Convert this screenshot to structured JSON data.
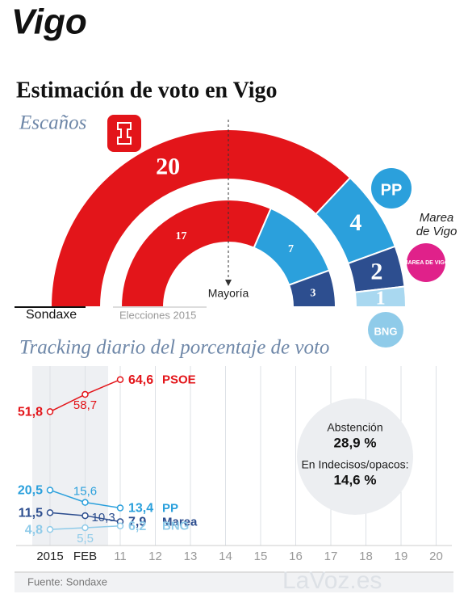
{
  "title": "Vigo",
  "heading": "Estimación de voto en Vigo",
  "source": "Fuente: Sondaxe",
  "watermark": "LaVoz.es",
  "chart_data": [
    {
      "type": "parliament",
      "title": "Escaños",
      "annotation": "Mayoría",
      "colors": [
        "#e3151a",
        "#2ba0dc",
        "#2d4e8f",
        "#a9d8f0"
      ],
      "series": [
        {
          "name": "Sondaxe",
          "values": [
            20,
            4,
            2,
            1
          ]
        },
        {
          "name": "Elecciones 2015",
          "values": [
            17,
            7,
            3
          ]
        }
      ],
      "logos": {
        "pp": "PP",
        "marea": "MAREA DE VIGO",
        "bng": "BNG",
        "marea_label": [
          "Marea",
          "de Vigo"
        ]
      }
    },
    {
      "type": "line",
      "title": "Tracking diario del porcentaje de voto",
      "categories": [
        "2015",
        "FEB",
        "11",
        "12",
        "13",
        "14",
        "15",
        "16",
        "17",
        "18",
        "19",
        "20"
      ],
      "ylim": [
        0,
        70
      ],
      "series": [
        {
          "name": "PSOE",
          "color": "#e3151a",
          "values": [
            51.8,
            58.7,
            64.6,
            null,
            null,
            null,
            null,
            null,
            null,
            null,
            null,
            null
          ],
          "value_labels": [
            "51,8",
            "58,7",
            "64,6",
            null,
            null,
            null,
            null,
            null,
            null,
            null,
            null,
            null
          ]
        },
        {
          "name": "PP",
          "color": "#2ba0dc",
          "values": [
            20.5,
            15.6,
            13.4,
            null,
            null,
            null,
            null,
            null,
            null,
            null,
            null,
            null
          ],
          "value_labels": [
            "20,5",
            "15,6",
            "13,4",
            null,
            null,
            null,
            null,
            null,
            null,
            null,
            null,
            null
          ]
        },
        {
          "name": "Marea",
          "color": "#2d4e8f",
          "values": [
            11.5,
            10.3,
            7.9,
            null,
            null,
            null,
            null,
            null,
            null,
            null,
            null,
            null
          ],
          "value_labels": [
            "11,5",
            "10,3",
            "7,9",
            null,
            null,
            null,
            null,
            null,
            null,
            null,
            null,
            null
          ]
        },
        {
          "name": "BNG",
          "color": "#8fcbe9",
          "values": [
            4.8,
            5.5,
            6.2,
            null,
            null,
            null,
            null,
            null,
            null,
            null,
            null,
            null
          ],
          "value_labels": [
            "4,8",
            "5,5",
            "6,2",
            null,
            null,
            null,
            null,
            null,
            null,
            null,
            null,
            null
          ]
        }
      ],
      "annotations": [
        {
          "label": "Abstención",
          "value": 28.9,
          "value_label": "28,9 %"
        },
        {
          "label": "En Indecisos/opacos:",
          "value": 14.6,
          "value_label": "14,6 %"
        }
      ]
    }
  ]
}
